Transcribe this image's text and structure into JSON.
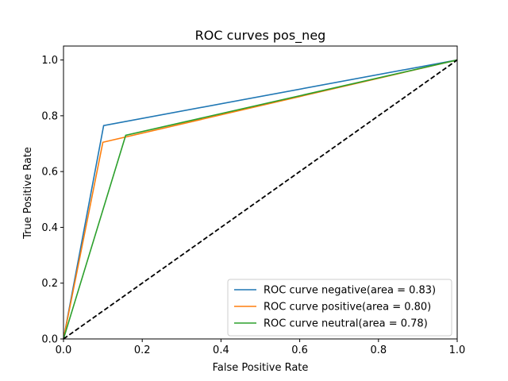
{
  "chart_data": {
    "type": "line",
    "title": "ROC curves pos_neg",
    "xlabel": "False Positive Rate",
    "ylabel": "True Positive Rate",
    "xlim": [
      0,
      1
    ],
    "ylim": [
      0,
      1.05
    ],
    "xticks": [
      0.0,
      0.2,
      0.4,
      0.6,
      0.8,
      1.0
    ],
    "yticks": [
      0.0,
      0.2,
      0.4,
      0.6,
      0.8,
      1.0
    ],
    "xtick_labels": [
      "0.0",
      "0.2",
      "0.4",
      "0.6",
      "0.8",
      "1.0"
    ],
    "ytick_labels": [
      "0.0",
      "0.2",
      "0.4",
      "0.6",
      "0.8",
      "1.0"
    ],
    "grid": false,
    "legend_position": "lower-right",
    "series": [
      {
        "name": "ROC curve negative(area = 0.83)",
        "color": "#1f77b4",
        "style": "solid",
        "x": [
          0.0,
          0.102,
          1.0
        ],
        "y": [
          0.0,
          0.765,
          1.0
        ]
      },
      {
        "name": "ROC curve positive(area = 0.80)",
        "color": "#ff7f0e",
        "style": "solid",
        "x": [
          0.0,
          0.1,
          1.0
        ],
        "y": [
          0.0,
          0.705,
          1.0
        ]
      },
      {
        "name": "ROC curve neutral(area = 0.78)",
        "color": "#2ca02c",
        "style": "solid",
        "x": [
          0.0,
          0.158,
          1.0
        ],
        "y": [
          0.0,
          0.73,
          1.0
        ]
      },
      {
        "name": "",
        "color": "#000000",
        "style": "dashed",
        "x": [
          0.0,
          1.0
        ],
        "y": [
          0.0,
          1.0
        ]
      }
    ]
  }
}
